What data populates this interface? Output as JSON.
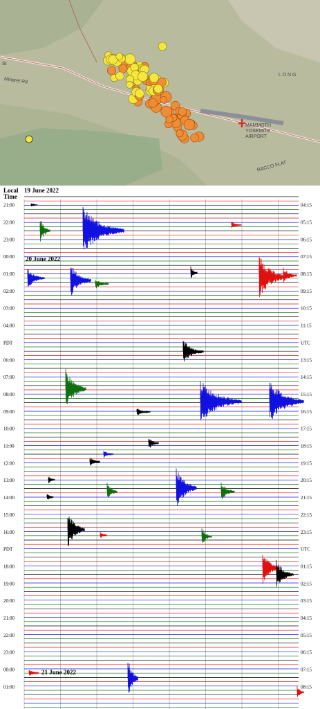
{
  "map": {
    "labels": {
      "st": "St",
      "minaret_rd": "Minaret Rd",
      "long": "L O N G",
      "airport_1": "MAMMOTH",
      "airport_2": "YOSEMITE",
      "airport_3": "AIRPORT",
      "flat": "RACCO FLAT"
    }
  },
  "helicorder": {
    "local_time_1": "Local",
    "local_time_2": "Time",
    "dates": [
      "19 June 2022",
      "20 June 2022",
      "21 June 2022"
    ],
    "left_labels": [
      "21:00",
      "22:00",
      "23:00",
      "00:00",
      "01:00",
      "02:00",
      "03:00",
      "04:00",
      "PDT",
      "06:00",
      "07:00",
      "08:00",
      "09:00",
      "10:00",
      "11:00",
      "12:00",
      "13:00",
      "14:00",
      "15:00",
      "16:00",
      "PDT",
      "18:00",
      "19:00",
      "20:00",
      "21:00",
      "22:00",
      "23:00",
      "00:00",
      "01:00"
    ],
    "right_labels": [
      "04:15",
      "05:15",
      "06:15",
      "07:15",
      "08:15",
      "09:15",
      "10:15",
      "11:15",
      "UTC",
      "13:15",
      "14:15",
      "15:15",
      "16:15",
      "17:15",
      "18:15",
      "19:15",
      "20:15",
      "21:15",
      "22:15",
      "23:15",
      "UTC",
      "01:15",
      "02:15",
      "03:15",
      "04:15",
      "05:15",
      "06:15",
      "07:15",
      "08:15"
    ]
  }
}
